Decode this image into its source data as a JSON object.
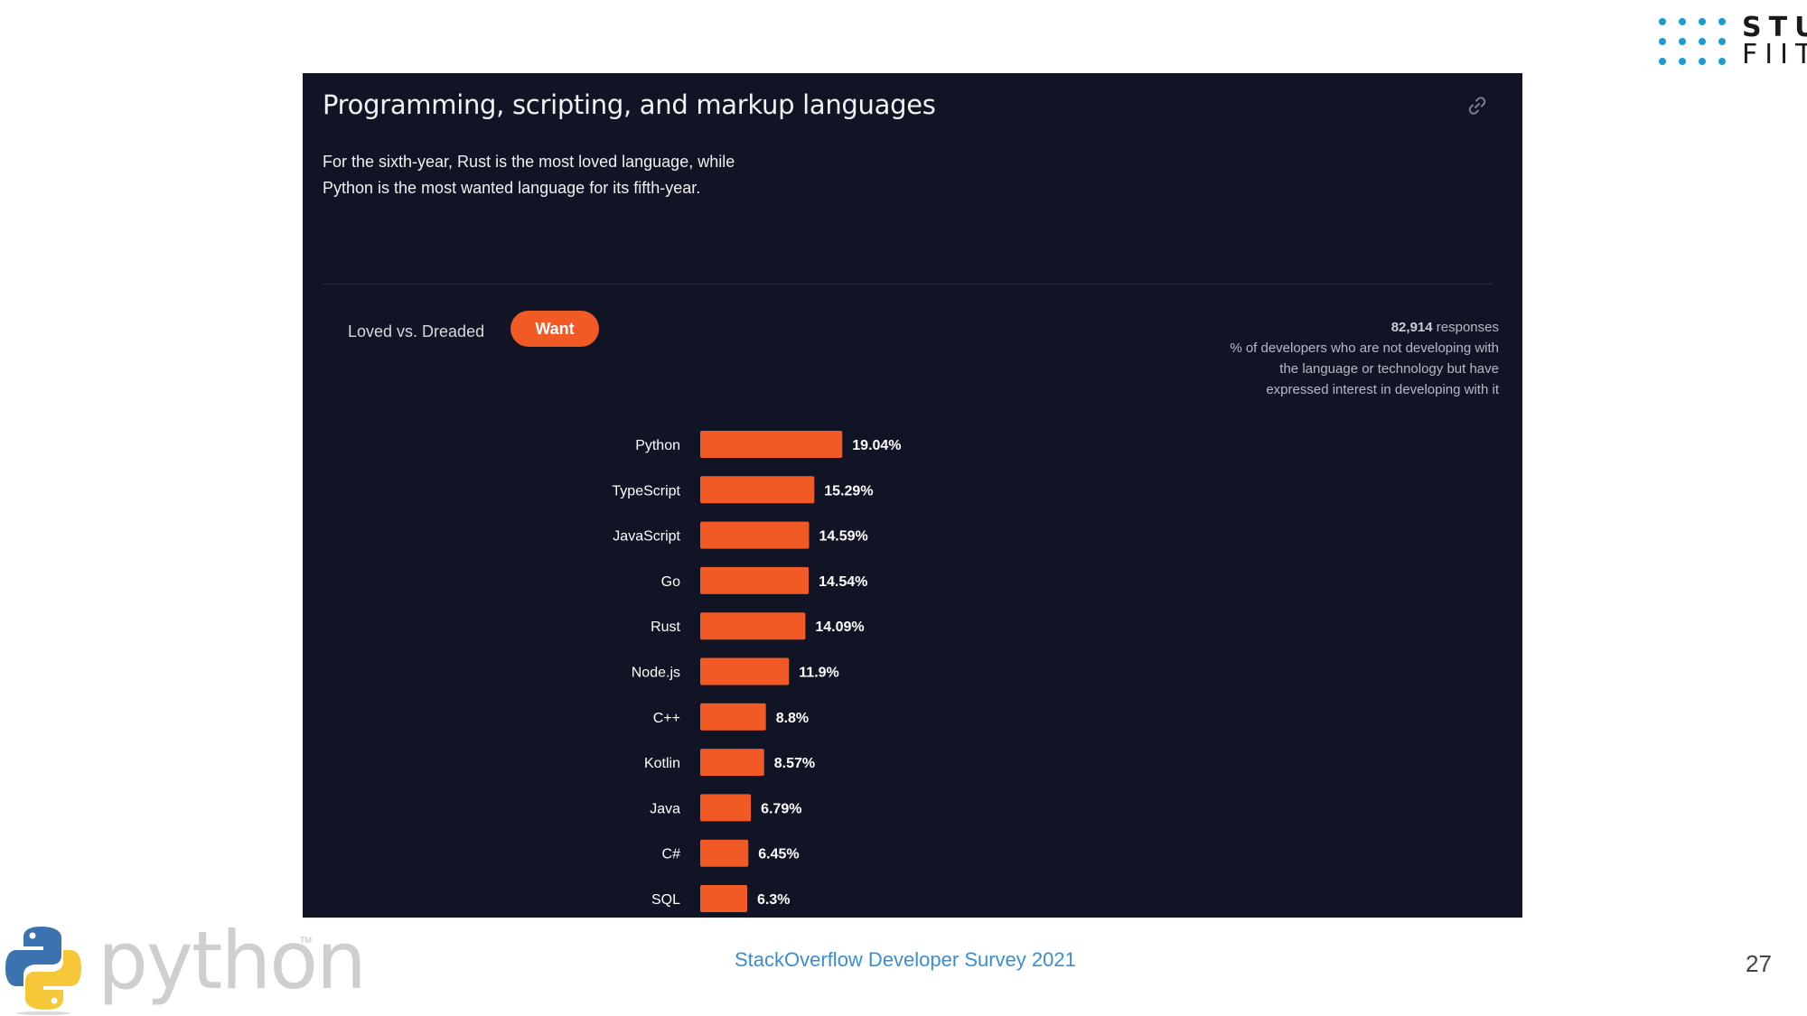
{
  "logo": {
    "line1": "STU",
    "line2": "FIIT"
  },
  "panel": {
    "title": "Programming, scripting, and markup languages",
    "description_line1": "For the sixth-year, Rust is the most loved language, while",
    "description_line2": "Python is the most wanted language for its fifth-year.",
    "tabs": {
      "loved": "Loved vs. Dreaded",
      "want": "Want"
    },
    "responses": {
      "count": "82,914",
      "count_suffix": "responses",
      "note_line1": "% of developers who are not developing with",
      "note_line2": "the language or technology but have",
      "note_line3": "expressed interest in developing with it"
    },
    "accent_color": "#f15a24",
    "background_color": "#101424"
  },
  "chart_data": {
    "type": "bar",
    "orientation": "horizontal",
    "categories": [
      "Python",
      "TypeScript",
      "JavaScript",
      "Go",
      "Rust",
      "Node.js",
      "C++",
      "Kotlin",
      "Java",
      "C#",
      "SQL"
    ],
    "values": [
      19.04,
      15.29,
      14.59,
      14.54,
      14.09,
      11.9,
      8.8,
      8.57,
      6.79,
      6.45,
      6.3
    ],
    "value_labels": [
      "19.04%",
      "15.29%",
      "14.59%",
      "14.54%",
      "14.09%",
      "11.9%",
      "8.8%",
      "8.57%",
      "6.79%",
      "6.45%",
      "6.3%"
    ],
    "bar_color": "#f15a24"
  },
  "footer": {
    "python_word": "python",
    "trademark": "TM",
    "source": "StackOverflow Developer Survey 2021",
    "page_number": "27"
  }
}
